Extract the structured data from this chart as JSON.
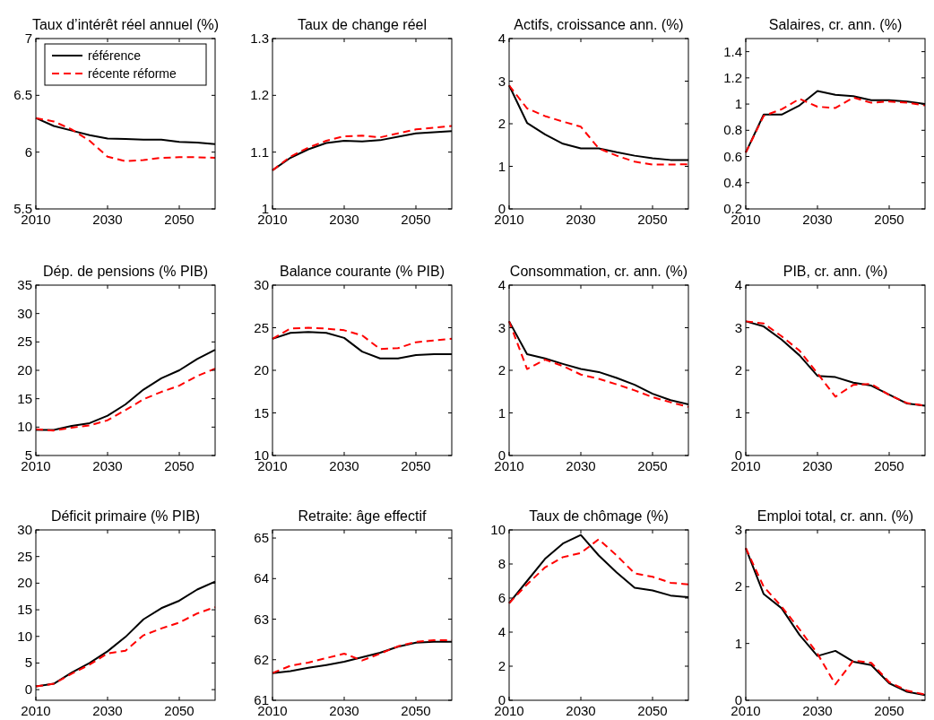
{
  "chart_data": [
    {
      "type": "line",
      "title": "Taux d’intérêt réel annuel (%)",
      "x": [
        2010,
        2015,
        2020,
        2025,
        2030,
        2035,
        2040,
        2045,
        2050,
        2055,
        2060
      ],
      "xlim": [
        2010,
        2060
      ],
      "xticks": [
        2010,
        2030,
        2050
      ],
      "ylim": [
        5.5,
        7
      ],
      "yticks": [
        5.5,
        6,
        6.5,
        7
      ],
      "legend": "top",
      "series": [
        {
          "name": "référence",
          "color": "#000000",
          "line_style": "solid",
          "values": [
            6.3,
            6.23,
            6.19,
            6.15,
            6.12,
            6.115,
            6.11,
            6.11,
            6.09,
            6.085,
            6.07
          ]
        },
        {
          "name": "récente réforme",
          "color": "#ff0000",
          "line_style": "dashed",
          "values": [
            6.3,
            6.27,
            6.2,
            6.1,
            5.96,
            5.92,
            5.93,
            5.95,
            5.955,
            5.955,
            5.95
          ]
        }
      ]
    },
    {
      "type": "line",
      "title": "Taux de change réel",
      "x": [
        2010,
        2015,
        2020,
        2025,
        2030,
        2035,
        2040,
        2045,
        2050,
        2055,
        2060
      ],
      "xlim": [
        2010,
        2060
      ],
      "xticks": [
        2010,
        2030,
        2050
      ],
      "ylim": [
        1,
        1.3
      ],
      "yticks": [
        1,
        1.1,
        1.2,
        1.3
      ],
      "series": [
        {
          "color": "#000000",
          "line_style": "solid",
          "values": [
            1.068,
            1.09,
            1.105,
            1.116,
            1.12,
            1.119,
            1.121,
            1.127,
            1.133,
            1.135,
            1.137
          ]
        },
        {
          "color": "#ff0000",
          "line_style": "dashed",
          "values": [
            1.068,
            1.092,
            1.108,
            1.12,
            1.128,
            1.129,
            1.126,
            1.133,
            1.14,
            1.143,
            1.146
          ]
        }
      ]
    },
    {
      "type": "line",
      "title": "Actifs, croissance ann. (%)",
      "x": [
        2010,
        2015,
        2020,
        2025,
        2030,
        2035,
        2040,
        2045,
        2050,
        2055,
        2060
      ],
      "xlim": [
        2010,
        2060
      ],
      "xticks": [
        2010,
        2030,
        2050
      ],
      "ylim": [
        0,
        4
      ],
      "yticks": [
        0,
        1,
        2,
        3,
        4
      ],
      "series": [
        {
          "color": "#000000",
          "line_style": "solid",
          "values": [
            2.9,
            2.02,
            1.75,
            1.53,
            1.42,
            1.42,
            1.33,
            1.25,
            1.19,
            1.15,
            1.15
          ]
        },
        {
          "color": "#ff0000",
          "line_style": "dashed",
          "values": [
            2.9,
            2.36,
            2.18,
            2.05,
            1.93,
            1.42,
            1.25,
            1.11,
            1.04,
            1.04,
            1.05
          ]
        }
      ]
    },
    {
      "type": "line",
      "title": "Salaires, cr. ann. (%)",
      "x": [
        2010,
        2015,
        2020,
        2025,
        2030,
        2035,
        2040,
        2045,
        2050,
        2055,
        2060
      ],
      "xlim": [
        2010,
        2060
      ],
      "xticks": [
        2010,
        2030,
        2050
      ],
      "ylim": [
        0.2,
        1.5
      ],
      "yticks": [
        0.2,
        0.4,
        0.6,
        0.8,
        1,
        1.2,
        1.4
      ],
      "series": [
        {
          "color": "#000000",
          "line_style": "solid",
          "values": [
            0.63,
            0.92,
            0.92,
            0.99,
            1.1,
            1.07,
            1.06,
            1.03,
            1.03,
            1.02,
            1.0
          ]
        },
        {
          "color": "#ff0000",
          "line_style": "dashed",
          "values": [
            0.63,
            0.91,
            0.96,
            1.04,
            0.98,
            0.97,
            1.05,
            1.01,
            1.02,
            1.01,
            0.99
          ]
        }
      ]
    },
    {
      "type": "line",
      "title": "Dép. de pensions (% PIB)",
      "x": [
        2010,
        2015,
        2020,
        2025,
        2030,
        2035,
        2040,
        2045,
        2050,
        2055,
        2060
      ],
      "xlim": [
        2010,
        2060
      ],
      "xticks": [
        2010,
        2030,
        2050
      ],
      "ylim": [
        5,
        35
      ],
      "yticks": [
        5,
        10,
        15,
        20,
        25,
        30,
        35
      ],
      "series": [
        {
          "color": "#000000",
          "line_style": "solid",
          "values": [
            9.5,
            9.5,
            10.2,
            10.7,
            12.0,
            14.0,
            16.6,
            18.6,
            20.0,
            22.0,
            23.6
          ]
        },
        {
          "color": "#ff0000",
          "line_style": "dashed",
          "values": [
            9.6,
            9.4,
            9.9,
            10.3,
            11.2,
            13.0,
            14.9,
            16.2,
            17.3,
            19.0,
            20.3
          ]
        }
      ]
    },
    {
      "type": "line",
      "title": "Balance courante (% PIB)",
      "x": [
        2010,
        2015,
        2020,
        2025,
        2030,
        2035,
        2040,
        2045,
        2050,
        2055,
        2060
      ],
      "xlim": [
        2010,
        2060
      ],
      "xticks": [
        2010,
        2030,
        2050
      ],
      "ylim": [
        10,
        30
      ],
      "yticks": [
        10,
        15,
        20,
        25,
        30
      ],
      "series": [
        {
          "color": "#000000",
          "line_style": "solid",
          "values": [
            23.7,
            24.4,
            24.5,
            24.4,
            23.8,
            22.2,
            21.4,
            21.4,
            21.8,
            21.9,
            21.9
          ]
        },
        {
          "color": "#ff0000",
          "line_style": "dashed",
          "values": [
            23.7,
            24.9,
            25.0,
            24.9,
            24.7,
            24.1,
            22.5,
            22.6,
            23.3,
            23.5,
            23.7
          ]
        }
      ]
    },
    {
      "type": "line",
      "title": "Consommation, cr. ann. (%)",
      "x": [
        2010,
        2015,
        2020,
        2025,
        2030,
        2035,
        2040,
        2045,
        2050,
        2055,
        2060
      ],
      "xlim": [
        2010,
        2060
      ],
      "xticks": [
        2010,
        2030,
        2050
      ],
      "ylim": [
        0,
        4
      ],
      "yticks": [
        0,
        1,
        2,
        3,
        4
      ],
      "series": [
        {
          "color": "#000000",
          "line_style": "solid",
          "values": [
            3.15,
            2.38,
            2.28,
            2.15,
            2.03,
            1.96,
            1.82,
            1.66,
            1.45,
            1.3,
            1.2
          ]
        },
        {
          "color": "#ff0000",
          "line_style": "dashed",
          "values": [
            3.15,
            2.03,
            2.25,
            2.1,
            1.9,
            1.8,
            1.67,
            1.53,
            1.37,
            1.25,
            1.14
          ]
        }
      ]
    },
    {
      "type": "line",
      "title": "PIB, cr. ann. (%)",
      "x": [
        2010,
        2015,
        2020,
        2025,
        2030,
        2035,
        2040,
        2045,
        2050,
        2055,
        2060
      ],
      "xlim": [
        2010,
        2060
      ],
      "xticks": [
        2010,
        2030,
        2050
      ],
      "ylim": [
        0,
        4
      ],
      "yticks": [
        0,
        1,
        2,
        3,
        4
      ],
      "series": [
        {
          "color": "#000000",
          "line_style": "solid",
          "values": [
            3.15,
            3.03,
            2.72,
            2.35,
            1.87,
            1.84,
            1.71,
            1.64,
            1.43,
            1.22,
            1.17
          ]
        },
        {
          "color": "#ff0000",
          "line_style": "dashed",
          "values": [
            3.15,
            3.1,
            2.8,
            2.46,
            1.93,
            1.38,
            1.66,
            1.68,
            1.42,
            1.23,
            1.17
          ]
        }
      ]
    },
    {
      "type": "line",
      "title": "Déficit primaire (% PIB)",
      "x": [
        2010,
        2015,
        2020,
        2025,
        2030,
        2035,
        2040,
        2045,
        2050,
        2055,
        2060
      ],
      "xlim": [
        2010,
        2060
      ],
      "xticks": [
        2010,
        2030,
        2050
      ],
      "ylim": [
        -2,
        30
      ],
      "yticks": [
        0,
        5,
        10,
        15,
        20,
        25,
        30
      ],
      "series": [
        {
          "color": "#000000",
          "line_style": "solid",
          "values": [
            0.6,
            1.1,
            3.2,
            5.0,
            7.2,
            9.9,
            13.2,
            15.3,
            16.7,
            18.8,
            20.3
          ]
        },
        {
          "color": "#ff0000",
          "line_style": "dashed",
          "values": [
            0.6,
            1.1,
            3.0,
            4.7,
            6.8,
            7.3,
            10.2,
            11.5,
            12.6,
            14.3,
            15.5
          ]
        }
      ]
    },
    {
      "type": "line",
      "title": "Retraite: âge effectif",
      "x": [
        2010,
        2015,
        2020,
        2025,
        2030,
        2035,
        2040,
        2045,
        2050,
        2055,
        2060
      ],
      "xlim": [
        2010,
        2060
      ],
      "xticks": [
        2010,
        2030,
        2050
      ],
      "ylim": [
        61,
        65.2
      ],
      "yticks": [
        61,
        62,
        63,
        64,
        65
      ],
      "series": [
        {
          "color": "#000000",
          "line_style": "solid",
          "values": [
            61.67,
            61.72,
            61.8,
            61.87,
            61.95,
            62.06,
            62.17,
            62.32,
            62.42,
            62.44,
            62.44
          ]
        },
        {
          "color": "#ff0000",
          "line_style": "dashed",
          "values": [
            61.67,
            61.85,
            61.93,
            62.04,
            62.15,
            61.98,
            62.15,
            62.33,
            62.44,
            62.48,
            62.48
          ]
        }
      ]
    },
    {
      "type": "line",
      "title": "Taux de chômage (%)",
      "x": [
        2010,
        2015,
        2020,
        2025,
        2030,
        2035,
        2040,
        2045,
        2050,
        2055,
        2060
      ],
      "xlim": [
        2010,
        2060
      ],
      "xticks": [
        2010,
        2030,
        2050
      ],
      "ylim": [
        0,
        10
      ],
      "yticks": [
        0,
        2,
        4,
        6,
        8,
        10
      ],
      "series": [
        {
          "color": "#000000",
          "line_style": "solid",
          "values": [
            5.7,
            7.0,
            8.3,
            9.2,
            9.7,
            8.5,
            7.5,
            6.6,
            6.45,
            6.15,
            6.05
          ]
        },
        {
          "color": "#ff0000",
          "line_style": "dashed",
          "values": [
            5.7,
            6.8,
            7.8,
            8.4,
            8.65,
            9.45,
            8.5,
            7.45,
            7.25,
            6.9,
            6.8
          ]
        }
      ]
    },
    {
      "type": "line",
      "title": "Emploi total, cr. ann. (%)",
      "x": [
        2010,
        2015,
        2020,
        2025,
        2030,
        2035,
        2040,
        2045,
        2050,
        2055,
        2060
      ],
      "xlim": [
        2010,
        2060
      ],
      "xticks": [
        2010,
        2030,
        2050
      ],
      "ylim": [
        0,
        3
      ],
      "yticks": [
        0,
        1,
        2,
        3
      ],
      "series": [
        {
          "color": "#000000",
          "line_style": "solid",
          "values": [
            2.68,
            1.87,
            1.62,
            1.15,
            0.78,
            0.87,
            0.68,
            0.62,
            0.3,
            0.15,
            0.09
          ]
        },
        {
          "color": "#ff0000",
          "line_style": "dashed",
          "values": [
            2.68,
            2.0,
            1.65,
            1.25,
            0.82,
            0.28,
            0.7,
            0.66,
            0.32,
            0.17,
            0.1
          ]
        }
      ]
    }
  ]
}
